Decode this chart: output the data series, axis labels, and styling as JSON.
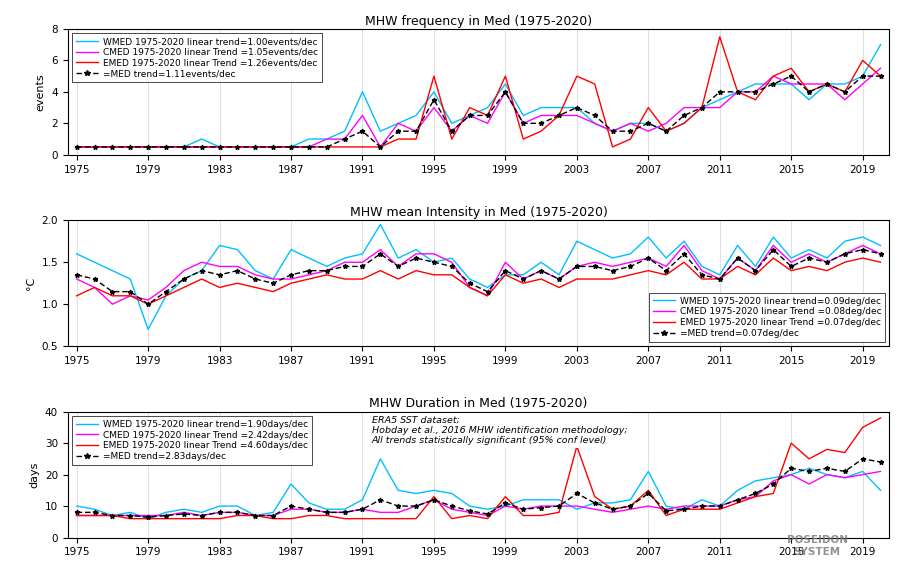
{
  "years": [
    1975,
    1976,
    1977,
    1978,
    1979,
    1980,
    1981,
    1982,
    1983,
    1984,
    1985,
    1986,
    1987,
    1988,
    1989,
    1990,
    1991,
    1992,
    1993,
    1994,
    1995,
    1996,
    1997,
    1998,
    1999,
    2000,
    2001,
    2002,
    2003,
    2004,
    2005,
    2006,
    2007,
    2008,
    2009,
    2010,
    2011,
    2012,
    2013,
    2014,
    2015,
    2016,
    2017,
    2018,
    2019,
    2020
  ],
  "freq_wmed": [
    0.5,
    0.5,
    0.5,
    0.5,
    0.5,
    0.5,
    0.5,
    1.0,
    0.5,
    0.5,
    0.5,
    0.5,
    0.5,
    1.0,
    1.0,
    1.5,
    4.0,
    1.5,
    2.0,
    2.5,
    4.0,
    2.0,
    2.5,
    3.0,
    4.5,
    2.5,
    3.0,
    3.0,
    3.0,
    2.0,
    1.5,
    2.0,
    2.0,
    1.5,
    2.0,
    3.0,
    3.5,
    4.0,
    4.5,
    4.5,
    4.5,
    3.5,
    4.5,
    4.5,
    5.0,
    7.0
  ],
  "freq_cmed": [
    0.5,
    0.5,
    0.5,
    0.5,
    0.5,
    0.5,
    0.5,
    0.5,
    0.5,
    0.5,
    0.5,
    0.5,
    0.5,
    0.5,
    1.0,
    1.0,
    2.5,
    0.5,
    2.0,
    1.5,
    3.0,
    1.5,
    2.5,
    2.0,
    4.0,
    2.0,
    2.5,
    2.5,
    2.5,
    2.0,
    1.5,
    2.0,
    1.5,
    2.0,
    3.0,
    3.0,
    3.0,
    4.0,
    4.0,
    5.0,
    4.5,
    4.5,
    4.5,
    3.5,
    4.5,
    5.5
  ],
  "freq_emed": [
    0.5,
    0.5,
    0.5,
    0.5,
    0.5,
    0.5,
    0.5,
    0.5,
    0.5,
    0.5,
    0.5,
    0.5,
    0.5,
    0.5,
    0.5,
    0.5,
    0.5,
    0.5,
    1.0,
    1.0,
    5.0,
    1.0,
    3.0,
    2.5,
    5.0,
    1.0,
    1.5,
    2.5,
    5.0,
    4.5,
    0.5,
    1.0,
    3.0,
    1.5,
    2.0,
    3.0,
    7.5,
    4.0,
    3.5,
    5.0,
    5.5,
    4.0,
    4.5,
    4.0,
    6.0,
    5.0
  ],
  "freq_med": [
    0.5,
    0.5,
    0.5,
    0.5,
    0.5,
    0.5,
    0.5,
    0.5,
    0.5,
    0.5,
    0.5,
    0.5,
    0.5,
    0.5,
    0.5,
    1.0,
    1.5,
    0.5,
    1.5,
    1.5,
    3.5,
    1.5,
    2.5,
    2.5,
    4.0,
    2.0,
    2.0,
    2.5,
    3.0,
    2.5,
    1.5,
    1.5,
    2.0,
    1.5,
    2.5,
    3.0,
    4.0,
    4.0,
    4.0,
    4.5,
    5.0,
    4.0,
    4.5,
    4.0,
    5.0,
    5.0
  ],
  "int_wmed": [
    1.6,
    1.5,
    1.4,
    1.3,
    0.7,
    1.1,
    1.3,
    1.4,
    1.7,
    1.65,
    1.4,
    1.3,
    1.65,
    1.55,
    1.45,
    1.55,
    1.6,
    1.95,
    1.55,
    1.65,
    1.5,
    1.55,
    1.3,
    1.2,
    1.35,
    1.35,
    1.5,
    1.35,
    1.75,
    1.65,
    1.55,
    1.6,
    1.8,
    1.55,
    1.75,
    1.45,
    1.35,
    1.7,
    1.45,
    1.8,
    1.55,
    1.65,
    1.55,
    1.75,
    1.8,
    1.7
  ],
  "int_cmed": [
    1.3,
    1.2,
    1.0,
    1.1,
    1.05,
    1.2,
    1.4,
    1.5,
    1.45,
    1.45,
    1.35,
    1.3,
    1.3,
    1.35,
    1.4,
    1.5,
    1.5,
    1.65,
    1.45,
    1.6,
    1.6,
    1.5,
    1.2,
    1.1,
    1.5,
    1.3,
    1.4,
    1.3,
    1.45,
    1.5,
    1.45,
    1.5,
    1.55,
    1.45,
    1.7,
    1.4,
    1.3,
    1.55,
    1.4,
    1.7,
    1.5,
    1.6,
    1.5,
    1.6,
    1.7,
    1.6
  ],
  "int_emed": [
    1.1,
    1.2,
    1.1,
    1.1,
    1.0,
    1.1,
    1.2,
    1.3,
    1.2,
    1.25,
    1.2,
    1.15,
    1.25,
    1.3,
    1.35,
    1.3,
    1.3,
    1.4,
    1.3,
    1.4,
    1.35,
    1.35,
    1.2,
    1.1,
    1.35,
    1.25,
    1.3,
    1.2,
    1.3,
    1.3,
    1.3,
    1.35,
    1.4,
    1.35,
    1.5,
    1.3,
    1.3,
    1.45,
    1.35,
    1.55,
    1.4,
    1.45,
    1.4,
    1.5,
    1.55,
    1.5
  ],
  "int_med": [
    1.35,
    1.3,
    1.15,
    1.15,
    1.0,
    1.15,
    1.3,
    1.4,
    1.35,
    1.4,
    1.3,
    1.25,
    1.35,
    1.4,
    1.4,
    1.45,
    1.45,
    1.6,
    1.45,
    1.55,
    1.5,
    1.45,
    1.25,
    1.15,
    1.4,
    1.3,
    1.4,
    1.3,
    1.45,
    1.45,
    1.4,
    1.45,
    1.55,
    1.4,
    1.6,
    1.35,
    1.3,
    1.55,
    1.4,
    1.65,
    1.45,
    1.55,
    1.5,
    1.6,
    1.65,
    1.6
  ],
  "dur_wmed": [
    10,
    9,
    7,
    8,
    6,
    8,
    9,
    8,
    10,
    10,
    7,
    8,
    17,
    11,
    9,
    9,
    12,
    25,
    15,
    14,
    15,
    14,
    10,
    9,
    10,
    12,
    12,
    12,
    9,
    11,
    11,
    12,
    21,
    10,
    9,
    12,
    10,
    15,
    18,
    19,
    20,
    22,
    20,
    19,
    21,
    15
  ],
  "dur_cmed": [
    7,
    7,
    7,
    7,
    7,
    7,
    8,
    7,
    8,
    8,
    7,
    7,
    9,
    9,
    8,
    8,
    9,
    8,
    8,
    10,
    12,
    9,
    8,
    7,
    10,
    9,
    10,
    10,
    10,
    9,
    8,
    9,
    10,
    9,
    10,
    10,
    10,
    12,
    13,
    18,
    20,
    17,
    20,
    19,
    20,
    21
  ],
  "dur_emed": [
    7,
    7,
    7,
    6,
    6,
    6,
    6,
    6,
    6,
    7,
    7,
    6,
    6,
    7,
    7,
    6,
    6,
    6,
    6,
    6,
    13,
    6,
    7,
    6,
    13,
    7,
    7,
    8,
    29,
    13,
    9,
    10,
    15,
    7,
    9,
    9,
    9,
    11,
    13,
    14,
    30,
    25,
    28,
    27,
    35,
    38
  ],
  "dur_med": [
    8,
    8,
    7,
    7,
    6.5,
    7,
    7.5,
    7,
    8,
    8,
    7,
    7,
    10,
    9,
    8,
    8,
    9,
    12,
    10,
    10,
    12,
    10,
    8.5,
    7.5,
    11,
    9,
    9.5,
    10,
    14,
    11,
    9,
    10,
    14,
    8.5,
    9,
    10,
    10,
    12,
    14,
    17,
    22,
    21,
    22,
    21,
    25,
    24
  ],
  "title1": "MHW frequency in Med (1975-2020)",
  "title2": "MHW mean Intensity in Med (1975-2020)",
  "title3": "MHW Duration in Med (1975-2020)",
  "legend1_lines": [
    "WMED 1975-2020 linear trend=1.00events/dec",
    "CMED 1975-2020 linear Trend =1.05events/dec",
    "EMED 1975-2020 linear Trend =1.26events/dec",
    "=MED trend=1.11events/dec"
  ],
  "legend2_lines": [
    "WMED 1975-2020 linear trend=0.09deg/dec",
    "CMED 1975-2020 linear Trend =0.08deg/dec",
    "EMED 1975-2020 linear Trend =0.07deg/dec",
    "=MED trend=0.07deg/dec"
  ],
  "legend3_lines": [
    "WMED 1975-2020 linear trend=1.90days/dec",
    "CMED 1975-2020 linear Trend =2.42days/dec",
    "EMED 1975-2020 linear Trend =4.60days/dec",
    "=MED trend=2.83days/dec"
  ],
  "annotation3": "ERA5 SST dataset;\nHobday et al., 2016 MHW identification methodology;\nAll trends statistically significant (95% conf level)",
  "color_wmed": "#00BFFF",
  "color_cmed": "#FF00FF",
  "color_emed": "#FF0000",
  "color_med": "#000000",
  "xticks": [
    1975,
    1979,
    1983,
    1987,
    1991,
    1995,
    1999,
    2003,
    2007,
    2011,
    2015,
    2019
  ],
  "ylabel1": "events",
  "ylabel2": "°C",
  "ylabel3": "days",
  "ylim1": [
    0,
    8
  ],
  "ylim2": [
    0.5,
    2
  ],
  "ylim3": [
    0,
    40
  ],
  "bg_color": "#ffffff"
}
